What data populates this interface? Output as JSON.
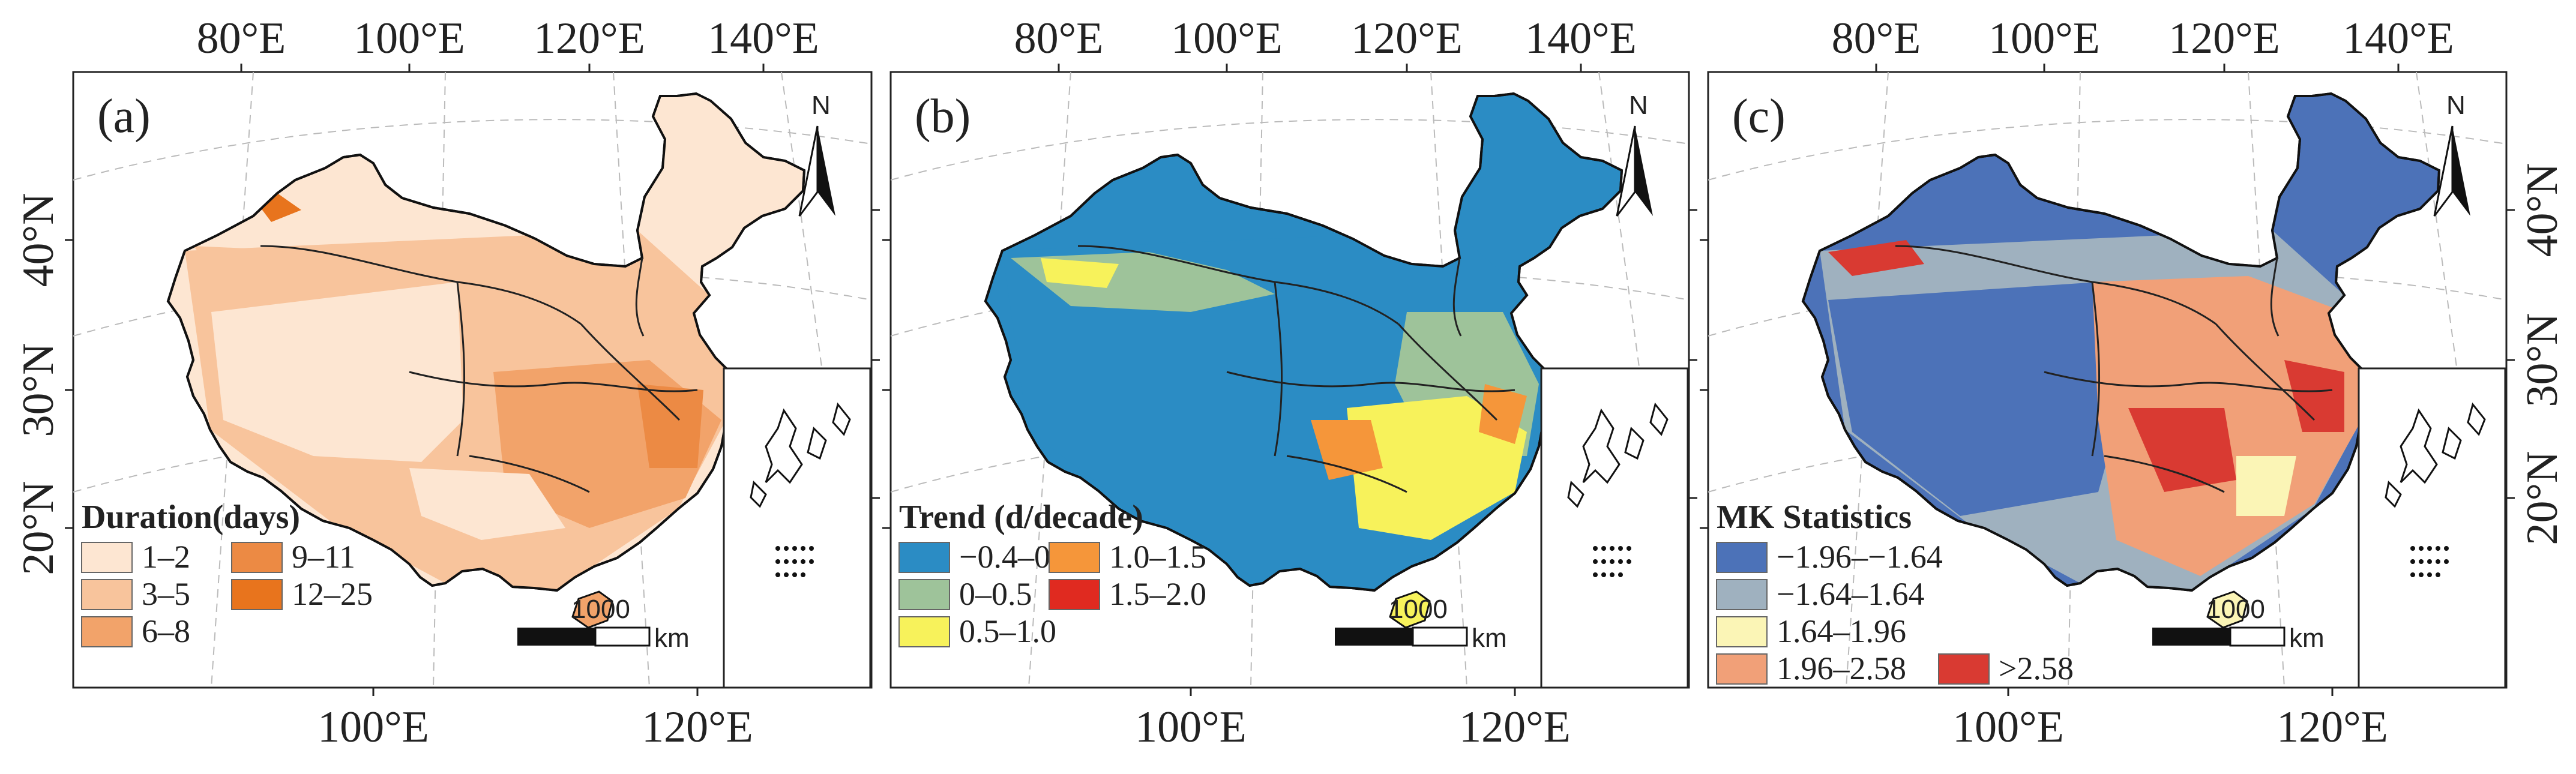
{
  "figure": {
    "top_lon_ticks": [
      "80°E",
      "100°E",
      "120°E",
      "140°E"
    ],
    "bottom_lon_ticks": [
      "100°E",
      "120°E"
    ],
    "lat_ticks": [
      "40°N",
      "30°N",
      "20°N"
    ],
    "north_label": "N",
    "scale_label": "1000",
    "scale_unit": "km"
  },
  "panels": [
    {
      "tag": "(a)",
      "legend_title": "Duration(days)",
      "legend": [
        {
          "label": "1–2",
          "color": "#fde6d2"
        },
        {
          "label": "3–5",
          "color": "#f8c49c"
        },
        {
          "label": "6–8",
          "color": "#f2a36a"
        },
        {
          "label": "9–11",
          "color": "#ec8a44"
        },
        {
          "label": "12–25",
          "color": "#e8741d"
        }
      ]
    },
    {
      "tag": "(b)",
      "legend_title": "Trend (d/decade)",
      "legend": [
        {
          "label": "−0.4–0",
          "color": "#2b8cc4"
        },
        {
          "label": "0–0.5",
          "color": "#9ec39a"
        },
        {
          "label": "0.5–1.0",
          "color": "#f7f25b"
        },
        {
          "label": "1.0–1.5",
          "color": "#f5963a"
        },
        {
          "label": "1.5–2.0",
          "color": "#e02a20"
        }
      ]
    },
    {
      "tag": "(c)",
      "legend_title": "MK Statistics",
      "legend": [
        {
          "label": "−1.96–−1.64",
          "color": "#4c72b8"
        },
        {
          "label": "−1.64–1.64",
          "color": "#9fb1bf"
        },
        {
          "label": "1.64–1.96",
          "color": "#fbf5b6"
        },
        {
          "label": "1.96–2.58",
          "color": "#f1a078"
        },
        {
          "label": ">2.58",
          "color": "#d93a32"
        }
      ]
    }
  ]
}
